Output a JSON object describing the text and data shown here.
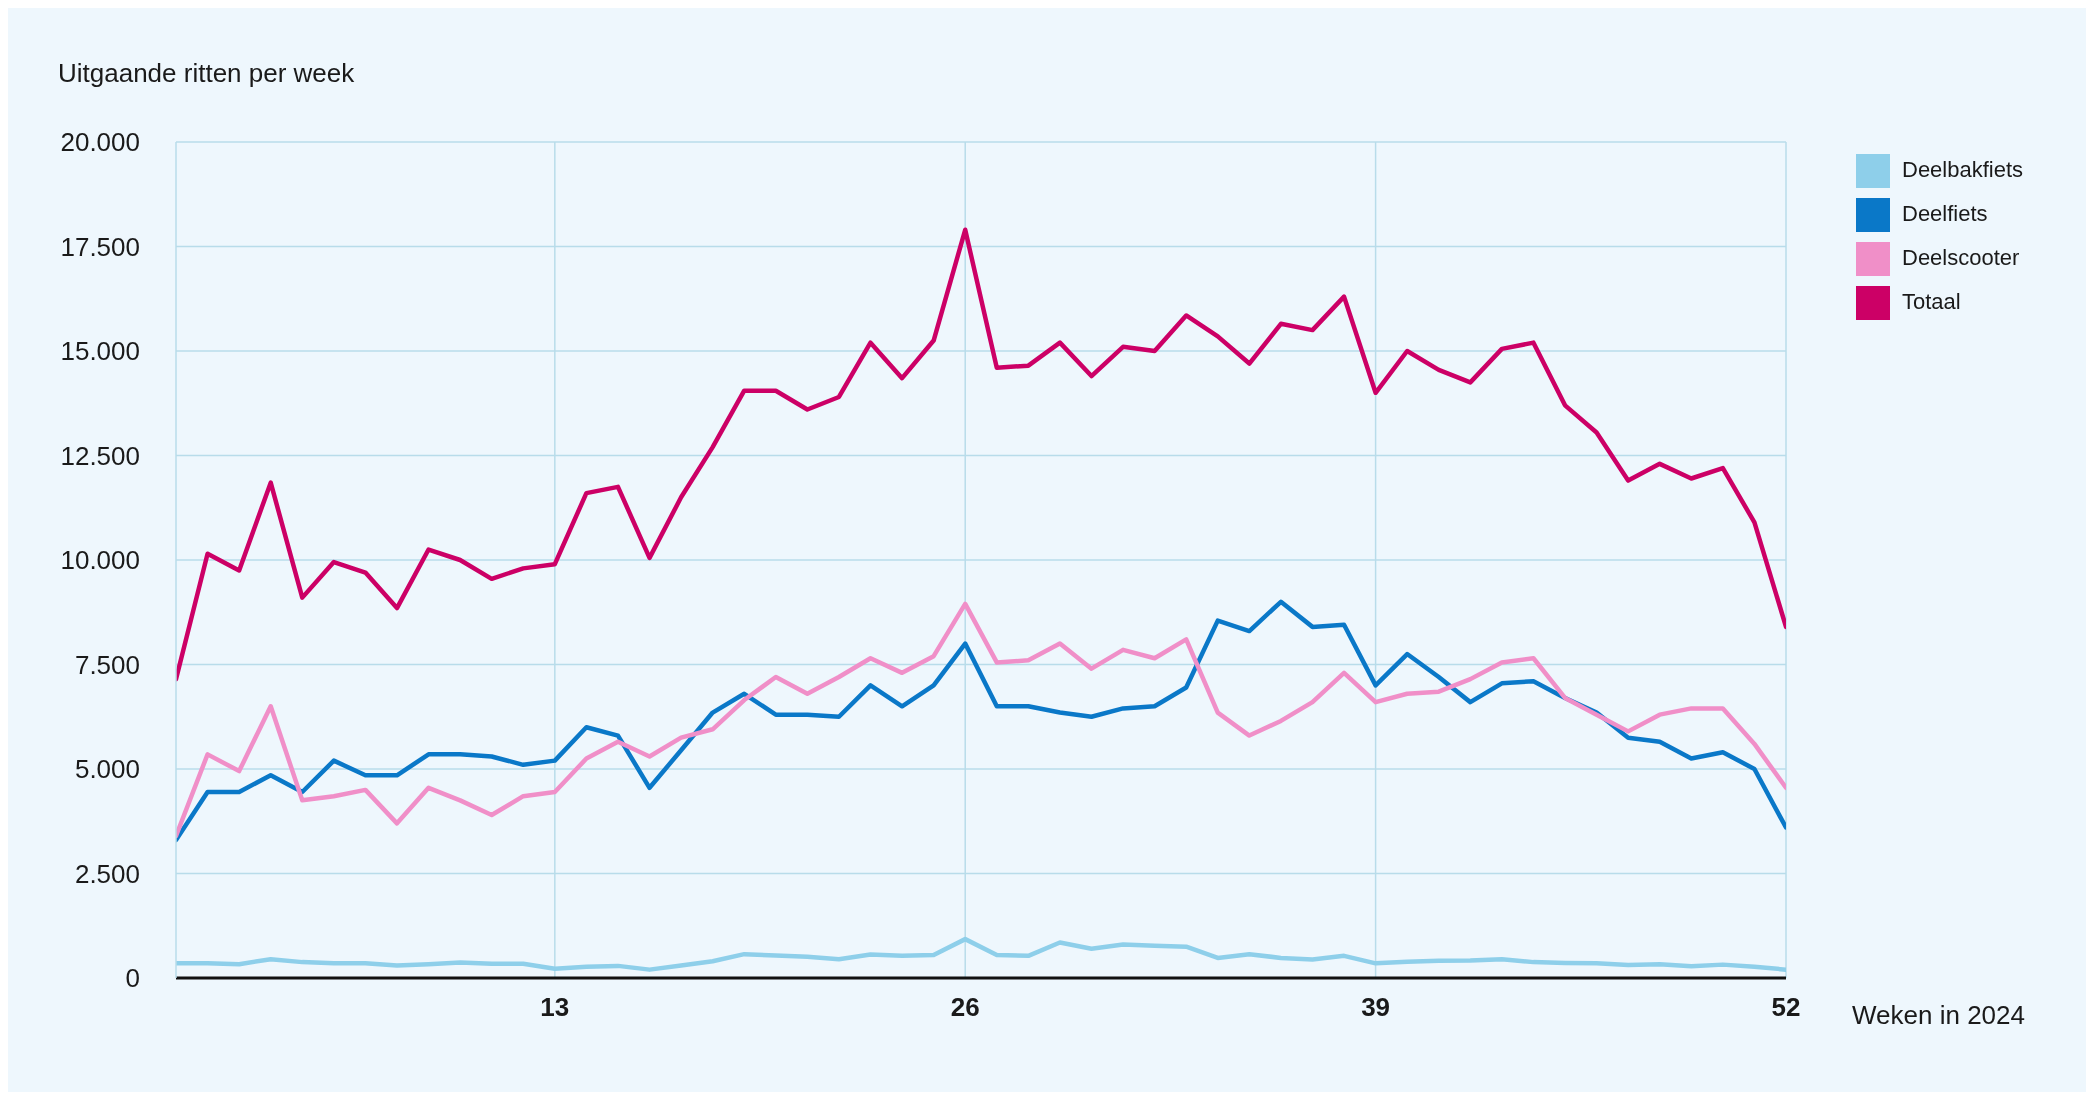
{
  "chart_data": {
    "type": "line",
    "ylabel": "Uitgaande ritten per week",
    "xlabel": "Weken in 2024",
    "x": [
      1,
      2,
      3,
      4,
      5,
      6,
      7,
      8,
      9,
      10,
      11,
      12,
      13,
      14,
      15,
      16,
      17,
      18,
      19,
      20,
      21,
      22,
      23,
      24,
      25,
      26,
      27,
      28,
      29,
      30,
      31,
      32,
      33,
      34,
      35,
      36,
      37,
      38,
      39,
      40,
      41,
      42,
      43,
      44,
      45,
      46,
      47,
      48,
      49,
      50,
      51,
      52
    ],
    "series": [
      {
        "name": "Deelbakfiets",
        "color": "#8ecfea",
        "values": [
          350,
          350,
          330,
          450,
          380,
          350,
          350,
          300,
          330,
          370,
          340,
          340,
          220,
          270,
          290,
          200,
          300,
          400,
          570,
          540,
          510,
          450,
          560,
          530,
          550,
          930,
          550,
          530,
          850,
          700,
          800,
          770,
          750,
          480,
          570,
          480,
          440,
          530,
          350,
          390,
          410,
          420,
          450,
          380,
          360,
          350,
          310,
          330,
          280,
          320,
          270,
          200
        ]
      },
      {
        "name": "Deelfiets",
        "color": "#0a78c8",
        "values": [
          3300,
          4450,
          4450,
          4850,
          4450,
          5200,
          4850,
          4850,
          5350,
          5350,
          5300,
          5100,
          5200,
          6000,
          5800,
          4550,
          5450,
          6350,
          6800,
          6300,
          6300,
          6250,
          7000,
          6500,
          7000,
          8000,
          6500,
          6500,
          6350,
          6250,
          6450,
          6500,
          6950,
          8550,
          8300,
          9000,
          8400,
          8450,
          7000,
          7750,
          7200,
          6600,
          7050,
          7100,
          6700,
          6350,
          5750,
          5650,
          5250,
          5400,
          5000,
          3600
        ]
      },
      {
        "name": "Deelscooter",
        "color": "#f08fc8",
        "values": [
          3400,
          5350,
          4950,
          6500,
          4250,
          4350,
          4500,
          3700,
          4550,
          4250,
          3900,
          4350,
          4450,
          5250,
          5650,
          5300,
          5750,
          5950,
          6650,
          7200,
          6800,
          7200,
          7650,
          7300,
          7700,
          8950,
          7550,
          7600,
          8000,
          7400,
          7850,
          7650,
          8100,
          6350,
          5800,
          6150,
          6600,
          7300,
          6600,
          6800,
          6850,
          7150,
          7550,
          7650,
          6700,
          6300,
          5900,
          6300,
          6450,
          6450,
          5600,
          4550
        ]
      },
      {
        "name": "Totaal",
        "color": "#cc0066",
        "values": [
          7150,
          10150,
          9750,
          11850,
          9100,
          9950,
          9700,
          8850,
          10250,
          10000,
          9550,
          9800,
          9900,
          11600,
          11750,
          10050,
          11500,
          12700,
          14050,
          14050,
          13600,
          13900,
          15200,
          14350,
          15250,
          17900,
          14600,
          14650,
          15200,
          14400,
          15100,
          15000,
          15850,
          15350,
          14700,
          15650,
          15500,
          16300,
          14000,
          15000,
          14550,
          14250,
          15050,
          15200,
          13700,
          13050,
          11900,
          12300,
          11950,
          12200,
          10900,
          8400
        ]
      }
    ],
    "xlim": [
      1,
      52
    ],
    "xticks": [
      13,
      26,
      39,
      52
    ],
    "ylim": [
      0,
      20000
    ],
    "yticks": [
      {
        "value": 0,
        "label": "0"
      },
      {
        "value": 2500,
        "label": "2.500"
      },
      {
        "value": 5000,
        "label": "5.000"
      },
      {
        "value": 7500,
        "label": "7.500"
      },
      {
        "value": 10000,
        "label": "10.000"
      },
      {
        "value": 12500,
        "label": "12.500"
      },
      {
        "value": 15000,
        "label": "15.000"
      },
      {
        "value": 17500,
        "label": "17.500"
      },
      {
        "value": 20000,
        "label": "20.000"
      }
    ],
    "grid": true,
    "legend": "top right",
    "marker": "none"
  }
}
